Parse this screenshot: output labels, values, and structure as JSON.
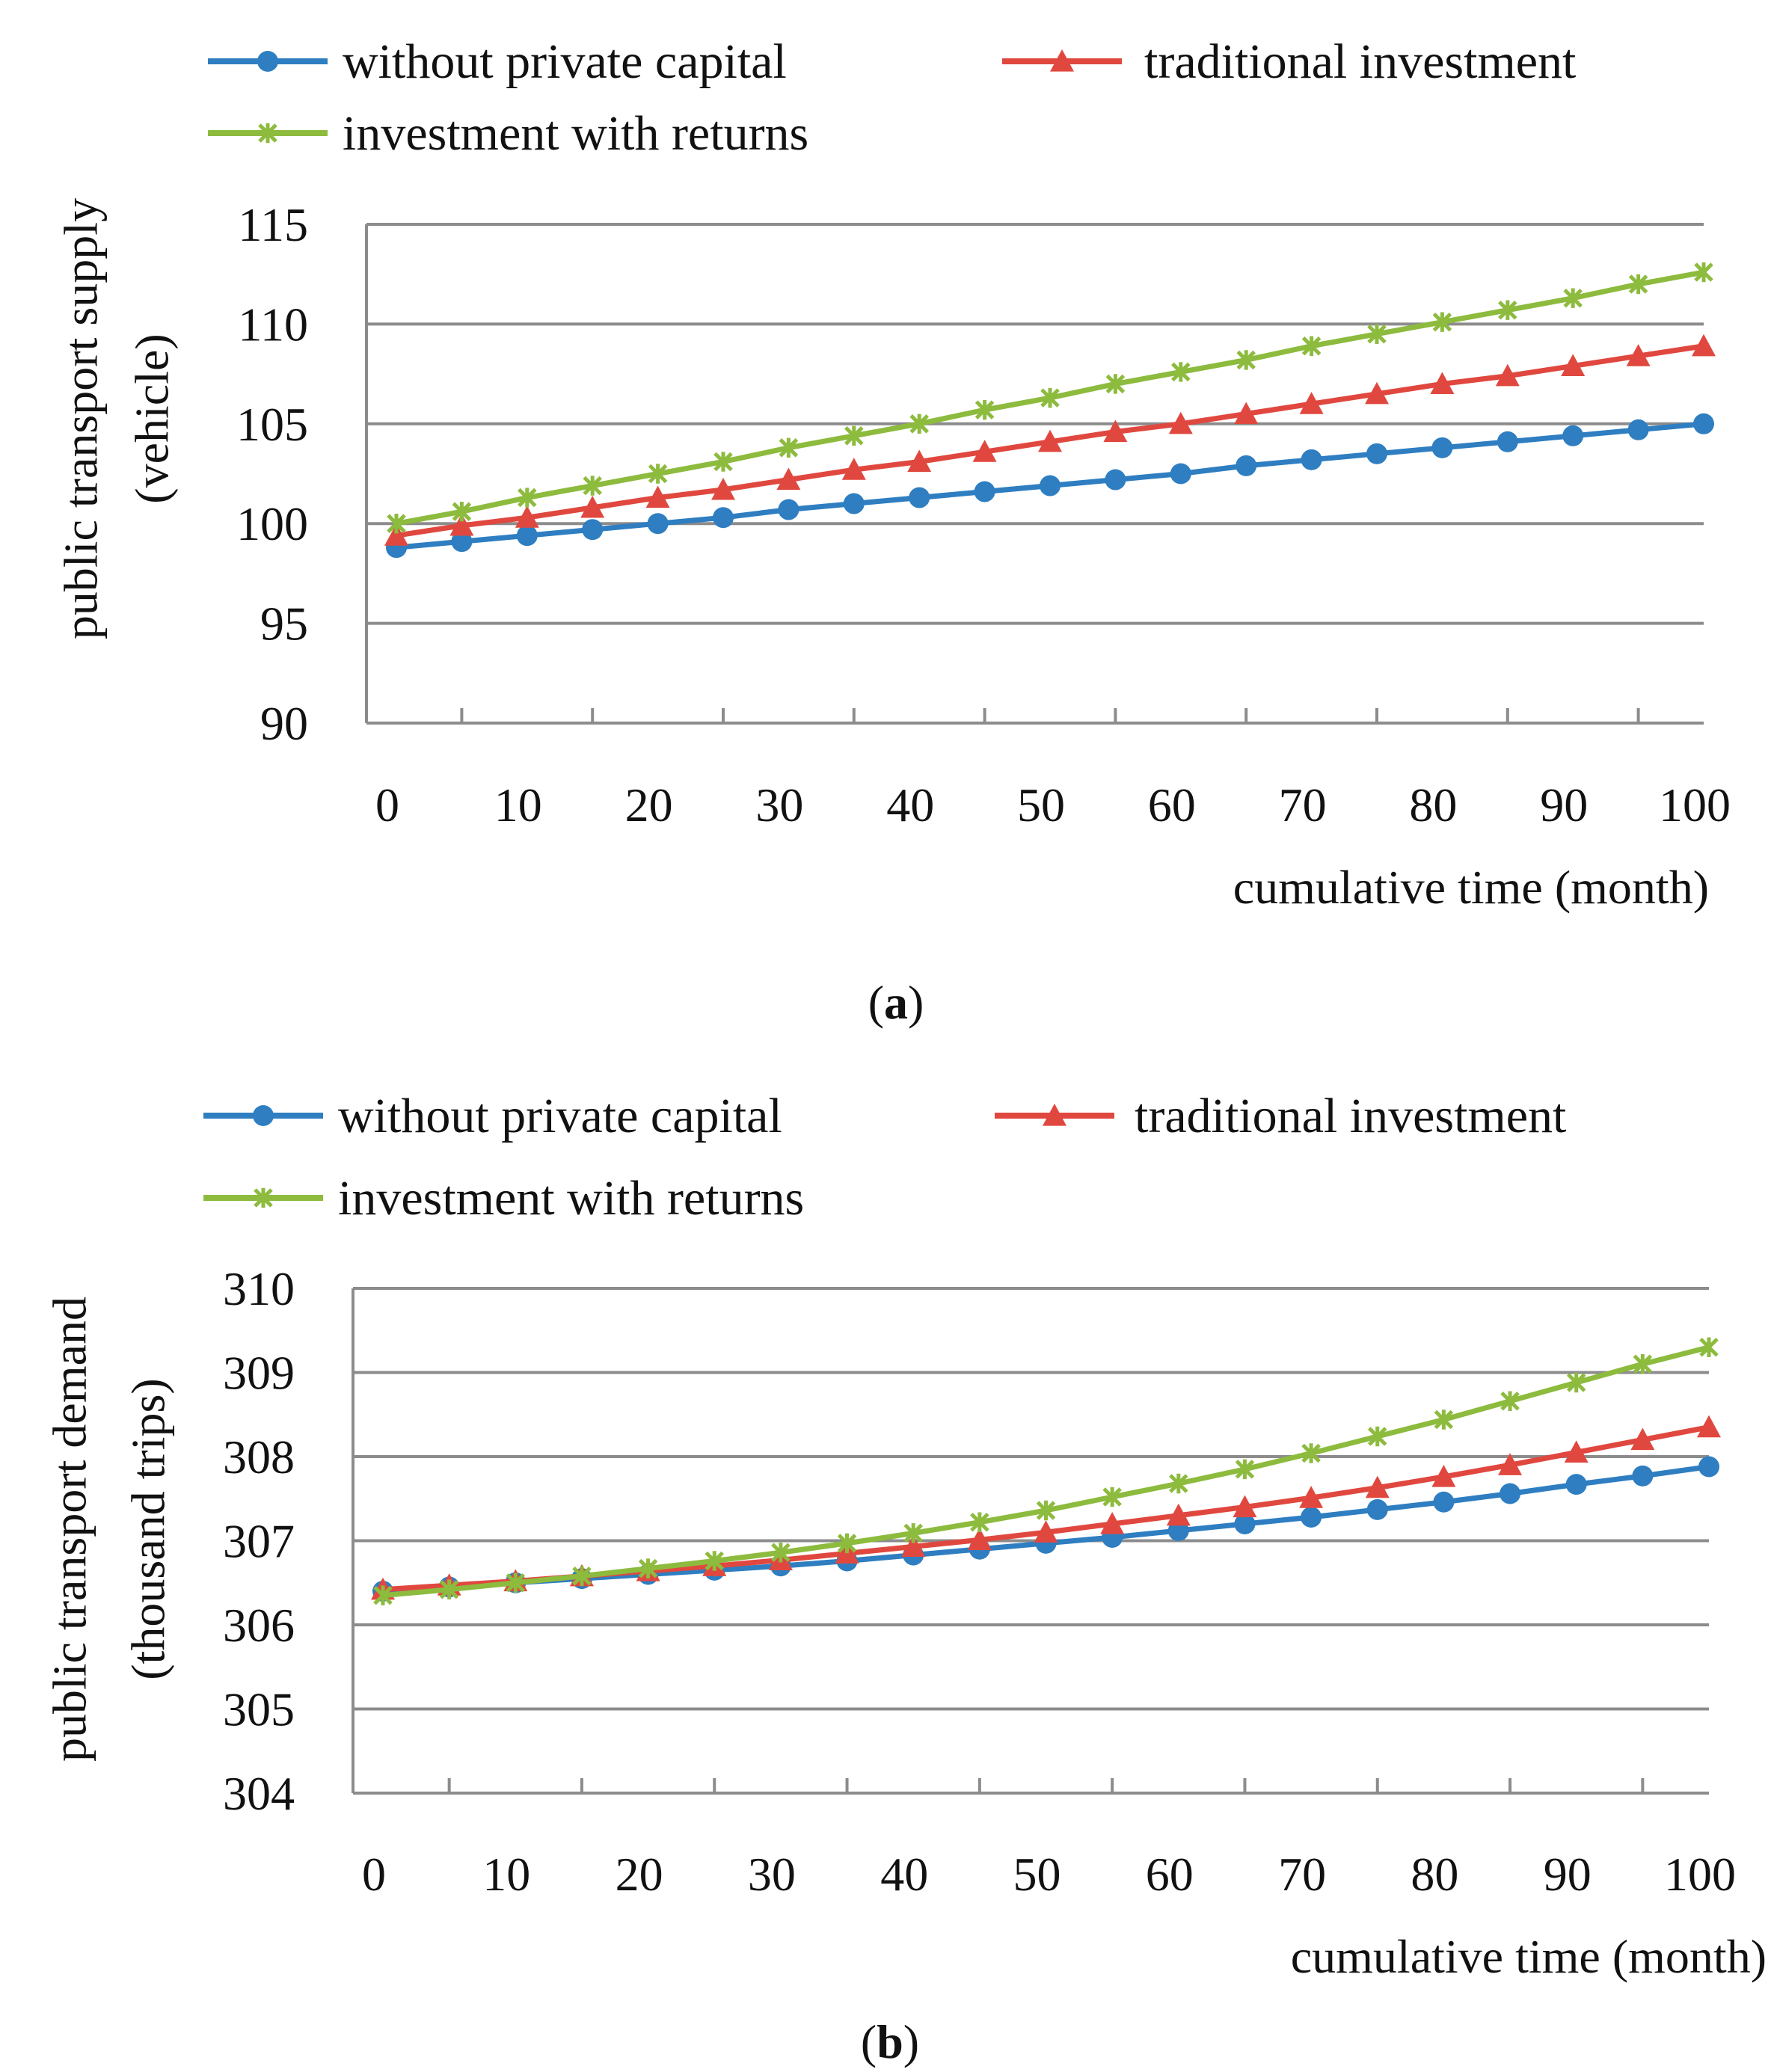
{
  "colors": {
    "series": [
      "#2E7EC1",
      "#E0483F",
      "#8DBB3E"
    ],
    "grid": "#8c8c8c",
    "axis": "#8c8c8c",
    "text": "#111111"
  },
  "legend_markers": [
    "circle",
    "triangle",
    "x-mark"
  ],
  "chart_data": [
    {
      "type": "line",
      "caption_letter": "a",
      "ylabel_lines": [
        "public transport supply",
        "(vehicle)"
      ],
      "xlabel": "cumulative time (month)",
      "xlim": [
        0,
        100
      ],
      "ylim": [
        90,
        115
      ],
      "xticks": [
        0,
        10,
        20,
        30,
        40,
        50,
        60,
        70,
        80,
        90,
        100
      ],
      "yticks": [
        90,
        95,
        100,
        105,
        110,
        115
      ],
      "grid": true,
      "legend_placement": "top",
      "x": [
        0,
        5,
        10,
        15,
        20,
        25,
        30,
        35,
        40,
        45,
        50,
        55,
        60,
        65,
        70,
        75,
        80,
        85,
        90,
        95,
        100
      ],
      "series": [
        {
          "name": "without private capital",
          "values": [
            98.8,
            99.1,
            99.4,
            99.7,
            100.0,
            100.3,
            100.7,
            101.0,
            101.3,
            101.6,
            101.9,
            102.2,
            102.5,
            102.9,
            103.2,
            103.5,
            103.8,
            104.1,
            104.4,
            104.7,
            105.0
          ]
        },
        {
          "name": "traditional investment",
          "values": [
            99.4,
            99.9,
            100.3,
            100.8,
            101.3,
            101.7,
            102.2,
            102.7,
            103.1,
            103.6,
            104.1,
            104.6,
            105.0,
            105.5,
            106.0,
            106.5,
            107.0,
            107.4,
            107.9,
            108.4,
            108.9
          ]
        },
        {
          "name": "investment with returns",
          "values": [
            100.0,
            100.6,
            101.3,
            101.9,
            102.5,
            103.1,
            103.8,
            104.4,
            105.0,
            105.7,
            106.3,
            107.0,
            107.6,
            108.2,
            108.9,
            109.5,
            110.1,
            110.7,
            111.3,
            112.0,
            112.6
          ]
        }
      ]
    },
    {
      "type": "line",
      "caption_letter": "b",
      "ylabel_lines": [
        "public transport demand",
        "(thousand trips)"
      ],
      "xlabel": "cumulative time (month)",
      "xlim": [
        0,
        100
      ],
      "ylim": [
        304,
        310
      ],
      "xticks": [
        0,
        10,
        20,
        30,
        40,
        50,
        60,
        70,
        80,
        90,
        100
      ],
      "yticks": [
        304,
        305,
        306,
        307,
        308,
        309,
        310
      ],
      "grid": true,
      "legend_placement": "top",
      "x": [
        0,
        5,
        10,
        15,
        20,
        25,
        30,
        35,
        40,
        45,
        50,
        55,
        60,
        65,
        70,
        75,
        80,
        85,
        90,
        95,
        100
      ],
      "series": [
        {
          "name": "without private capital",
          "values": [
            306.4,
            306.45,
            306.5,
            306.55,
            306.6,
            306.65,
            306.7,
            306.76,
            306.83,
            306.9,
            306.97,
            307.04,
            307.12,
            307.2,
            307.28,
            307.37,
            307.46,
            307.56,
            307.67,
            307.77,
            307.88
          ]
        },
        {
          "name": "traditional investment",
          "values": [
            306.42,
            306.47,
            306.52,
            306.58,
            306.64,
            306.7,
            306.77,
            306.85,
            306.93,
            307.01,
            307.1,
            307.2,
            307.3,
            307.4,
            307.51,
            307.63,
            307.76,
            307.9,
            308.05,
            308.2,
            308.35
          ]
        },
        {
          "name": "investment with returns",
          "values": [
            306.35,
            306.42,
            306.5,
            306.58,
            306.67,
            306.76,
            306.86,
            306.97,
            307.09,
            307.22,
            307.36,
            307.52,
            307.68,
            307.85,
            308.04,
            308.24,
            308.44,
            308.66,
            308.88,
            309.1,
            309.3
          ]
        }
      ]
    }
  ]
}
